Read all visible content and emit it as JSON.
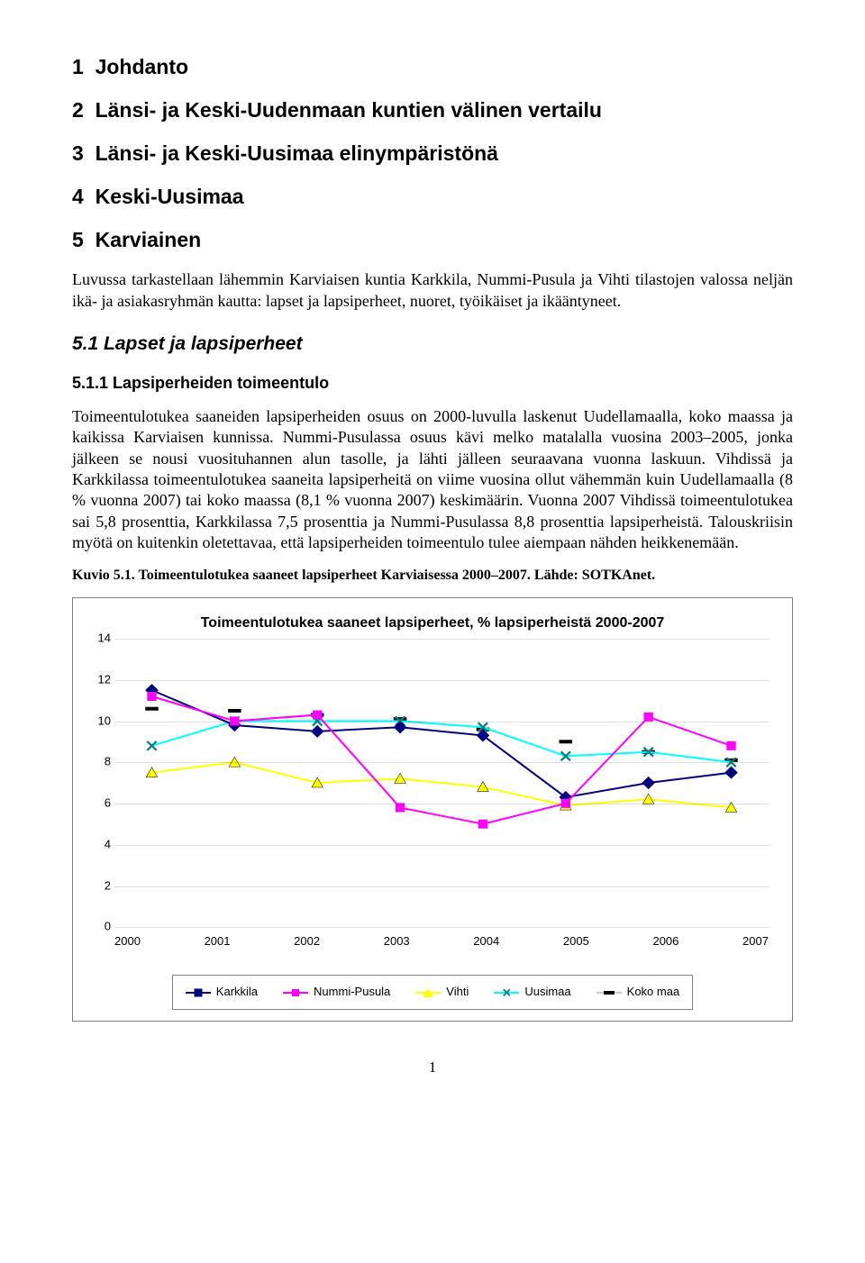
{
  "toc": [
    {
      "num": "1",
      "title": "Johdanto"
    },
    {
      "num": "2",
      "title": "Länsi- ja Keski-Uudenmaan kuntien välinen vertailu"
    },
    {
      "num": "3",
      "title": "Länsi- ja Keski-Uusimaa elinympäristönä"
    },
    {
      "num": "4",
      "title": "Keski-Uusimaa"
    },
    {
      "num": "5",
      "title": "Karviainen"
    }
  ],
  "intro_text": "Luvussa tarkastellaan lähemmin Karviaisen kuntia Karkkila, Nummi-Pusula ja Vihti tilastojen valossa neljän ikä- ja asiakasryhmän kautta: lapset ja lapsiperheet, nuoret, työikäiset ja ikääntyneet.",
  "h3": "5.1  Lapset ja lapsiperheet",
  "h4": "5.1.1  Lapsiperheiden toimeentulo",
  "body_text": "Toimeentulotukea saaneiden lapsiperheiden osuus on 2000-luvulla laskenut Uudellamaalla, koko maassa ja kaikissa Karviaisen kunnissa. Nummi-Pusulassa osuus kävi melko matalalla vuosina 2003–2005, jonka jälkeen se nousi vuosituhannen alun tasolle, ja lähti jälleen seuraavana vuonna laskuun. Vihdissä ja Karkkilassa toimeentulotukea saaneita lapsiperheitä on viime vuosina ollut vähemmän kuin Uudellamaalla (8 % vuonna 2007) tai koko maassa (8,1 % vuonna 2007) keskimäärin. Vuonna 2007 Vihdissä toimeentulotukea sai 5,8 prosenttia, Karkkilassa 7,5 prosenttia ja Nummi-Pusulassa 8,8 prosenttia lapsiperheistä. Talouskriisin myötä on kuitenkin oletettavaa, että lapsiperheiden toimeentulo tulee aiempaan nähden heikkenemään.",
  "fig_caption": "Kuvio 5.1. Toimeentulotukea saaneet lapsiperheet Karviaisessa 2000–2007. Lähde: SOTKAnet.",
  "chart": {
    "title": "Toimeentulotukea saaneet lapsiperheet, % lapsiperheistä 2000-2007",
    "type": "line",
    "years": [
      "2000",
      "2001",
      "2002",
      "2003",
      "2004",
      "2005",
      "2006",
      "2007"
    ],
    "ylim": [
      0,
      14
    ],
    "ytick_step": 2,
    "yticks": [
      0,
      2,
      4,
      6,
      8,
      10,
      12,
      14
    ],
    "background_color": "#ffffff",
    "grid_color": "#000000",
    "grid_opacity": 0.12,
    "axis_fontsize": 13,
    "title_fontsize": 16,
    "series": [
      {
        "name": "Karkkila",
        "label": "Karkkila",
        "color": "#000080",
        "marker": "diamond",
        "line_width": 2,
        "values": [
          11.5,
          9.8,
          9.5,
          9.7,
          9.3,
          6.3,
          7.0,
          7.5
        ]
      },
      {
        "name": "Nummi-Pusula",
        "label": "Nummi-Pusula",
        "color": "#ff00ff",
        "marker": "square",
        "line_width": 2,
        "values": [
          11.2,
          10.0,
          10.3,
          5.8,
          5.0,
          6.0,
          10.2,
          8.8
        ]
      },
      {
        "name": "Vihti",
        "label": "Vihti",
        "color": "#ffff00",
        "marker": "triangle",
        "line_width": 2,
        "marker_stroke": "#000000",
        "values": [
          7.5,
          8.0,
          7.0,
          7.2,
          6.8,
          5.9,
          6.2,
          5.8
        ]
      },
      {
        "name": "Uusimaa",
        "label": "Uusimaa",
        "color": "#00ffff",
        "marker": "x",
        "line_width": 2,
        "marker_stroke": "#008080",
        "values": [
          8.8,
          10.0,
          10.0,
          10.0,
          9.7,
          8.3,
          8.5,
          8.0
        ]
      },
      {
        "name": "Koko maa",
        "label": "Koko maa",
        "color": "#ffffff",
        "marker": "dash",
        "line_width": 2.5,
        "marker_color": "#000000",
        "values": [
          10.6,
          10.5,
          10.3,
          10.1,
          9.6,
          9.0,
          8.5,
          8.1
        ]
      }
    ]
  },
  "page_number": "1"
}
